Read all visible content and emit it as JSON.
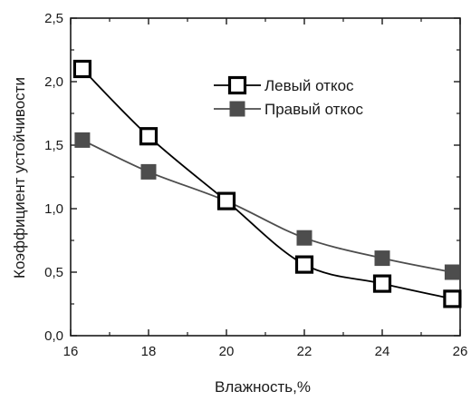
{
  "chart_data": {
    "type": "line",
    "xlabel": "Влажность,%",
    "ylabel": "Коэффициент устойчивости",
    "xlim": [
      16,
      26
    ],
    "ylim": [
      0,
      2.5
    ],
    "x_ticks": [
      "16",
      "18",
      "20",
      "22",
      "24",
      "26"
    ],
    "y_ticks": [
      "0,0",
      "0,5",
      "1,0",
      "1,5",
      "2,0",
      "2,5"
    ],
    "grid": false,
    "legend_position": "top-right",
    "series": [
      {
        "name": "Левый откос",
        "marker": "open-square",
        "color": "#000000",
        "x": [
          16.3,
          18.0,
          20.0,
          22.0,
          24.0,
          25.8
        ],
        "values": [
          2.1,
          1.57,
          1.06,
          0.56,
          0.41,
          0.29
        ]
      },
      {
        "name": "Правый откос",
        "marker": "filled-square",
        "color": "#4d4d4d",
        "x": [
          16.3,
          18.0,
          20.0,
          22.0,
          24.0,
          25.8
        ],
        "values": [
          1.54,
          1.29,
          1.06,
          0.77,
          0.61,
          0.5
        ]
      }
    ]
  }
}
